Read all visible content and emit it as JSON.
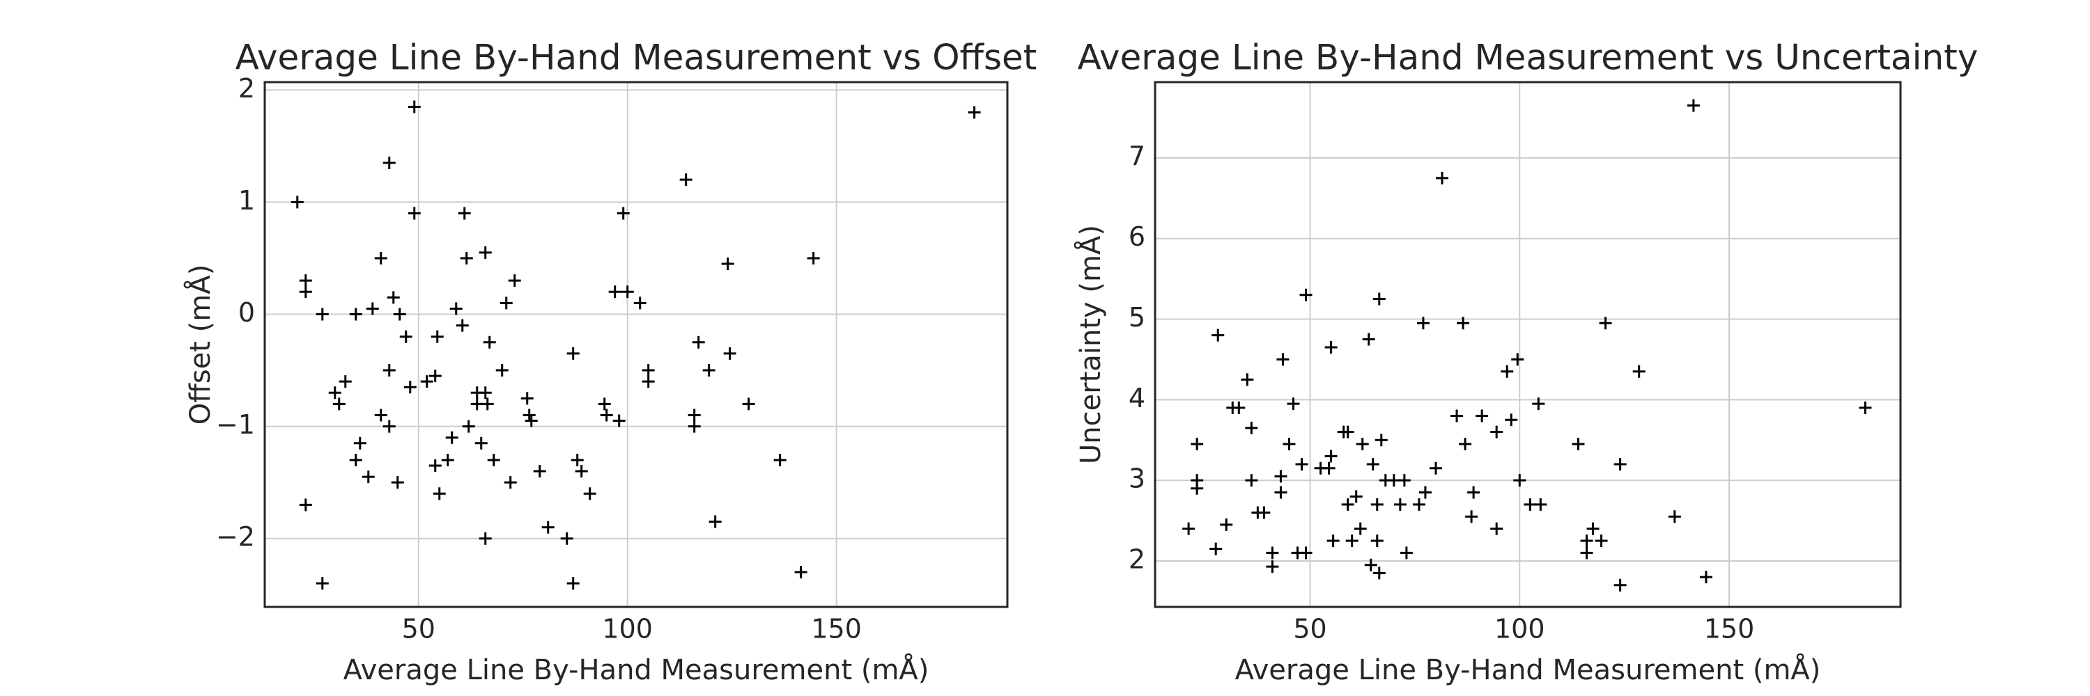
{
  "chart_data": [
    {
      "type": "scatter",
      "title": "Average Line By-Hand Measurement vs Offset",
      "x_label": "Average Line By-Hand Measurement (mÅ)",
      "y_label": "Offset (mÅ)",
      "color": "#000000",
      "marker": "+",
      "grid": true,
      "xlim": [
        13.2,
        190.9
      ],
      "ylim": [
        -2.61,
        2.07
      ],
      "xticks": [
        50,
        100,
        150
      ],
      "yticks": [
        {
          "value": -2,
          "label": "−2"
        },
        {
          "value": -1,
          "label": "−1"
        },
        0,
        1,
        2
      ],
      "x": [
        21,
        23,
        23,
        23,
        27,
        27,
        30,
        31,
        32.5,
        35,
        35,
        36,
        38,
        39,
        41,
        41,
        43,
        43,
        43,
        44,
        45,
        45.5,
        47,
        48,
        49,
        49,
        52,
        54,
        54.5,
        54,
        55,
        57,
        58,
        59,
        60.5,
        61,
        61.5,
        62,
        64,
        64,
        65,
        66,
        66,
        66,
        66.5,
        67,
        68,
        70,
        71,
        72,
        73,
        76,
        76.5,
        77,
        79,
        81,
        85.5,
        87,
        87,
        88,
        89,
        91,
        94.5,
        95,
        97,
        98,
        99,
        100,
        103,
        105,
        105,
        114,
        116,
        116,
        117,
        119.5,
        121,
        124,
        124.5,
        129,
        136.5,
        141.5,
        144.5,
        183
      ],
      "y": [
        1.0,
        0.3,
        0.2,
        -1.7,
        0,
        -2.4,
        -0.7,
        -0.8,
        -0.6,
        0,
        -1.3,
        -1.15,
        -1.45,
        0.05,
        0.5,
        -0.9,
        1.35,
        -1.0,
        -0.5,
        0.15,
        -1.5,
        0,
        -0.2,
        -0.65,
        1.85,
        0.9,
        -0.6,
        -0.55,
        -0.2,
        -1.35,
        -1.6,
        -1.3,
        -1.1,
        0.05,
        -0.1,
        0.9,
        0.5,
        -1.0,
        -0.7,
        -0.8,
        -1.15,
        0.55,
        -0.7,
        -2.0,
        -0.8,
        -0.25,
        -1.3,
        -0.5,
        0.1,
        -1.5,
        0.3,
        -0.75,
        -0.9,
        -0.95,
        -1.4,
        -1.9,
        -2.0,
        -0.35,
        -2.4,
        -1.3,
        -1.4,
        -1.6,
        -0.8,
        -0.9,
        0.2,
        -0.95,
        0.9,
        0.2,
        0.1,
        -0.5,
        -0.6,
        1.2,
        -0.9,
        -1.0,
        -0.25,
        -0.5,
        -1.85,
        0.45,
        -0.35,
        -0.8,
        -1.3,
        -2.3,
        0.5,
        1.8
      ]
    },
    {
      "type": "scatter",
      "title": "Average Line By-Hand Measurement vs Uncertainty",
      "x_label": "Average Line By-Hand Measurement (mÅ)",
      "y_label": "Uncertainty (mÅ)",
      "color": "#000000",
      "marker": "+",
      "grid": true,
      "xlim": [
        13.0,
        190.9
      ],
      "ylim": [
        1.43,
        7.94
      ],
      "xticks": [
        50,
        100,
        150
      ],
      "yticks": [
        2,
        3,
        4,
        5,
        6,
        7
      ],
      "x": [
        21,
        23,
        23,
        23,
        28,
        27.5,
        30,
        31.5,
        33,
        35,
        36,
        36,
        37.5,
        39,
        41,
        41,
        43,
        43,
        43.5,
        45,
        46,
        47,
        48,
        49,
        49,
        52.5,
        54.5,
        55,
        55,
        55.5,
        58,
        59,
        59,
        60,
        61,
        62,
        62.5,
        64,
        64.5,
        65,
        66,
        66,
        66.5,
        66.5,
        67,
        68,
        70,
        71.5,
        72.5,
        73,
        76,
        77,
        77.5,
        80,
        81.5,
        85,
        86.5,
        87,
        88.5,
        89,
        91,
        94.5,
        94.5,
        97,
        98,
        99.5,
        100,
        102.5,
        104.5,
        105,
        114,
        116,
        116,
        117.5,
        119.5,
        120.5,
        124,
        124,
        128.5,
        137,
        141.5,
        144.5,
        182.5
      ],
      "y": [
        2.4,
        3.45,
        3.0,
        2.9,
        4.8,
        2.15,
        2.45,
        3.9,
        3.9,
        4.25,
        3.65,
        3.0,
        2.6,
        2.6,
        2.1,
        1.93,
        2.85,
        3.05,
        4.5,
        3.45,
        3.95,
        2.1,
        3.2,
        2.1,
        5.3,
        3.15,
        3.15,
        3.3,
        4.65,
        2.25,
        3.6,
        3.6,
        2.7,
        2.25,
        2.8,
        2.4,
        3.45,
        4.75,
        1.95,
        3.2,
        2.25,
        2.7,
        1.85,
        5.25,
        3.5,
        3.0,
        3.0,
        2.7,
        3.0,
        2.1,
        2.7,
        4.95,
        2.85,
        3.15,
        6.75,
        3.8,
        4.95,
        3.45,
        2.55,
        2.85,
        3.8,
        3.6,
        2.4,
        4.35,
        3.75,
        4.5,
        3.0,
        2.7,
        3.95,
        2.7,
        3.45,
        2.25,
        2.1,
        2.4,
        2.25,
        4.95,
        3.2,
        1.7,
        4.35,
        2.55,
        7.65,
        1.8,
        3.9
      ]
    }
  ]
}
